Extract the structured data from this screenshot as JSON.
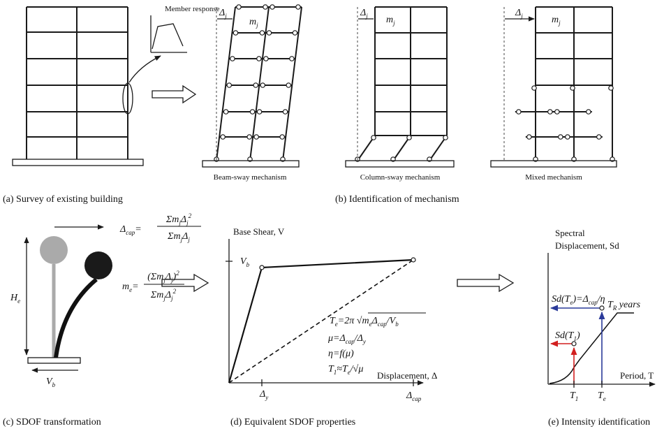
{
  "panel_a": {
    "inset_label": "Member response",
    "caption": "(a) Survey of existing building"
  },
  "panel_b": {
    "drift": [
      {
        "t": "Δ"
      },
      {
        "sub": "j"
      }
    ],
    "mass": [
      {
        "t": "m"
      },
      {
        "sub": "j"
      }
    ],
    "mechanisms": [
      "Beam-sway mechanism",
      "Column-sway mechanism",
      "Mixed mechanism"
    ],
    "caption": "(b) Identification of mechanism"
  },
  "panel_c": {
    "cap_lhs": [
      {
        "t": "Δ"
      },
      {
        "sub": "cap"
      },
      {
        "t": "="
      }
    ],
    "cap_num": [
      {
        "t": "Σm"
      },
      {
        "sub": "j"
      },
      {
        "t": "Δ"
      },
      {
        "sub": "j"
      },
      {
        "sup": "2"
      }
    ],
    "cap_den": [
      {
        "t": "Σm"
      },
      {
        "sub": "j"
      },
      {
        "t": "Δ"
      },
      {
        "sub": "j"
      }
    ],
    "mass_lhs": [
      {
        "t": "m"
      },
      {
        "sub": "e"
      },
      {
        "t": "="
      }
    ],
    "mass_num": [
      {
        "t": "(Σm"
      },
      {
        "sub": "j"
      },
      {
        "t": "Δ"
      },
      {
        "sub": "j"
      },
      {
        "t": ")"
      },
      {
        "sup": "2"
      }
    ],
    "mass_den": [
      {
        "t": "Σm"
      },
      {
        "sub": "j"
      },
      {
        "t": "Δ"
      },
      {
        "sub": "j"
      },
      {
        "sup": "2"
      }
    ],
    "height": [
      {
        "t": "H"
      },
      {
        "sub": "e"
      }
    ],
    "shear": [
      {
        "t": "V"
      },
      {
        "sub": "b"
      }
    ],
    "caption": "(c) SDOF transformation"
  },
  "panel_d": {
    "y_label": "Base Shear, V",
    "shear_b": [
      {
        "t": "V"
      },
      {
        "sub": "b"
      }
    ],
    "x_label": "Displacement, Δ",
    "yield": [
      {
        "t": "Δ"
      },
      {
        "sub": "y"
      }
    ],
    "cap": [
      {
        "t": "Δ"
      },
      {
        "sub": "cap"
      }
    ],
    "period": [
      {
        "t": "T"
      },
      {
        "sub": "e"
      },
      {
        "t": "=2π √"
      },
      {
        "t": "m"
      },
      {
        "sub": "e"
      },
      {
        "t": "Δ"
      },
      {
        "sub": "cap"
      },
      {
        "t": "/V"
      },
      {
        "sub": "b"
      }
    ],
    "ductility": [
      {
        "t": "μ=Δ"
      },
      {
        "sub": "cap"
      },
      {
        "t": "/Δ"
      },
      {
        "sub": "y"
      }
    ],
    "eta": [
      {
        "t": "η=f(μ)"
      }
    ],
    "t1": [
      {
        "t": "T"
      },
      {
        "sub": "1"
      },
      {
        "t": "≈T"
      },
      {
        "sub": "e"
      },
      {
        "t": "/√μ"
      }
    ],
    "caption": "(d) Equivalent SDOF properties"
  },
  "panel_e": {
    "y_label_1": "Spectral",
    "y_label_2": "Displacement, Sd",
    "x_label": "Period, T",
    "sd_te": [
      {
        "t": "Sd(T"
      },
      {
        "sub": "e"
      },
      {
        "t": ")=Δ"
      },
      {
        "sub": "cap"
      },
      {
        "t": "/η"
      }
    ],
    "sd_t1": [
      {
        "t": "Sd(T"
      },
      {
        "sub": "1"
      },
      {
        "t": ")"
      }
    ],
    "return": [
      {
        "t": "T"
      },
      {
        "sub": "R"
      },
      {
        "t": " years"
      }
    ],
    "t1": [
      {
        "t": "T"
      },
      {
        "sub": "1"
      }
    ],
    "te": [
      {
        "t": "T"
      },
      {
        "sub": "e"
      }
    ],
    "caption": "(e) Intensity identification"
  }
}
